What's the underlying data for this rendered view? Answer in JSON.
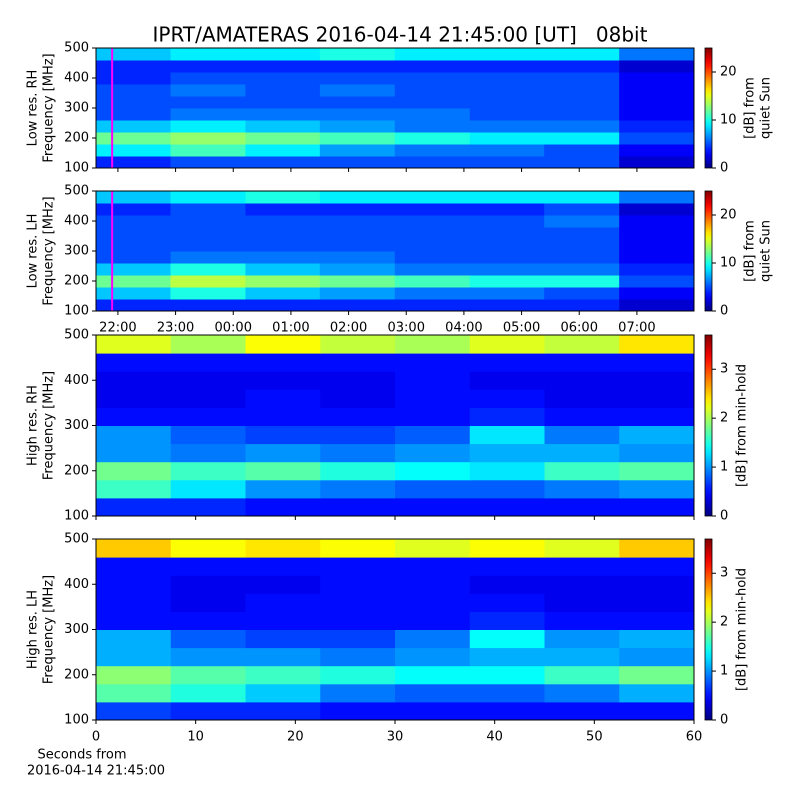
{
  "title": "IPRT/AMATERAS 2016-04-14 21:45:00 [UT]   08bit",
  "chart_data": [
    {
      "type": "heatmap",
      "ylabel": [
        "Low res. RH",
        "Frequency [MHz]"
      ],
      "colorbar_label": [
        "[dB] from",
        "quiet Sun"
      ],
      "xlim": [
        21.62,
        31.99
      ],
      "xticks": [
        {
          "value": 22,
          "label": "22:00"
        },
        {
          "value": 23,
          "label": "23:00"
        },
        {
          "value": 24,
          "label": "00:00"
        },
        {
          "value": 25,
          "label": "01:00"
        },
        {
          "value": 26,
          "label": "02:00"
        },
        {
          "value": 27,
          "label": "03:00"
        },
        {
          "value": 28,
          "label": "04:00"
        },
        {
          "value": 29,
          "label": "05:00"
        },
        {
          "value": 30,
          "label": "06:00"
        },
        {
          "value": 31,
          "label": "07:00"
        }
      ],
      "xtick_labels": false,
      "ylim": [
        100,
        500
      ],
      "yticks": [
        100,
        200,
        300,
        400,
        500
      ],
      "zlim": [
        0,
        25
      ],
      "zticks": [
        0,
        10,
        20
      ],
      "cursor_x": 21.9,
      "cursor_color": "#ff00ff",
      "x": [
        22.27,
        23.56,
        24.86,
        26.15,
        27.45,
        28.75,
        30.04,
        31.34
      ],
      "y": [
        120,
        160,
        200,
        240,
        280,
        320,
        360,
        400,
        440,
        480
      ],
      "z": [
        [
          4,
          5,
          5,
          5,
          5,
          5,
          5,
          2
        ],
        [
          9,
          11,
          9,
          7,
          6,
          6,
          5,
          3
        ],
        [
          12,
          13,
          12,
          11,
          10,
          9,
          9,
          5
        ],
        [
          8,
          9,
          8,
          7,
          6,
          6,
          6,
          4
        ],
        [
          5,
          6,
          6,
          6,
          6,
          5,
          5,
          3
        ],
        [
          5,
          5,
          5,
          5,
          5,
          5,
          5,
          3
        ],
        [
          5,
          6,
          5,
          6,
          5,
          5,
          5,
          3
        ],
        [
          4,
          5,
          5,
          5,
          5,
          5,
          5,
          3
        ],
        [
          4,
          4,
          4,
          4,
          4,
          4,
          4,
          2
        ],
        [
          8,
          9,
          9,
          10,
          9,
          9,
          9,
          6
        ]
      ]
    },
    {
      "type": "heatmap",
      "ylabel": [
        "Low res. LH",
        "Frequency [MHz]"
      ],
      "colorbar_label": [
        "[dB] from",
        "quiet Sun"
      ],
      "xlim": [
        21.62,
        31.99
      ],
      "xticks": [
        {
          "value": 22,
          "label": "22:00"
        },
        {
          "value": 23,
          "label": "23:00"
        },
        {
          "value": 24,
          "label": "00:00"
        },
        {
          "value": 25,
          "label": "01:00"
        },
        {
          "value": 26,
          "label": "02:00"
        },
        {
          "value": 27,
          "label": "03:00"
        },
        {
          "value": 28,
          "label": "04:00"
        },
        {
          "value": 29,
          "label": "05:00"
        },
        {
          "value": 30,
          "label": "06:00"
        },
        {
          "value": 31,
          "label": "07:00"
        }
      ],
      "xtick_labels": true,
      "ylim": [
        100,
        500
      ],
      "yticks": [
        100,
        200,
        300,
        400,
        500
      ],
      "zlim": [
        0,
        25
      ],
      "zticks": [
        0,
        10,
        20
      ],
      "cursor_x": 21.9,
      "cursor_color": "#ff00ff",
      "x": [
        22.27,
        23.56,
        24.86,
        26.15,
        27.45,
        28.75,
        30.04,
        31.34
      ],
      "y": [
        120,
        160,
        200,
        240,
        280,
        320,
        360,
        400,
        440,
        480
      ],
      "z": [
        [
          4,
          4,
          4,
          4,
          4,
          4,
          4,
          2
        ],
        [
          8,
          10,
          8,
          7,
          6,
          6,
          5,
          3
        ],
        [
          12,
          14,
          13,
          12,
          11,
          10,
          10,
          5
        ],
        [
          8,
          10,
          8,
          7,
          6,
          6,
          6,
          4
        ],
        [
          5,
          6,
          6,
          6,
          5,
          5,
          5,
          3
        ],
        [
          5,
          5,
          5,
          5,
          5,
          5,
          5,
          3
        ],
        [
          5,
          5,
          5,
          5,
          5,
          5,
          5,
          3
        ],
        [
          5,
          5,
          5,
          5,
          5,
          5,
          6,
          3
        ],
        [
          4,
          5,
          4,
          4,
          4,
          4,
          5,
          2
        ],
        [
          8,
          9,
          10,
          9,
          9,
          9,
          9,
          6
        ]
      ]
    },
    {
      "type": "heatmap",
      "ylabel": [
        "High res. RH",
        "Frequency [MHz]"
      ],
      "colorbar_label": [
        "[dB] from min-hold"
      ],
      "xlim": [
        0,
        60
      ],
      "xticks": [
        0,
        10,
        20,
        30,
        40,
        50,
        60
      ],
      "xtick_labels": false,
      "ylim": [
        100,
        500
      ],
      "yticks": [
        100,
        200,
        300,
        400,
        500
      ],
      "zlim": [
        0,
        3.7
      ],
      "zticks": [
        0,
        1,
        2,
        3
      ],
      "x": [
        3.75,
        11.25,
        18.75,
        26.25,
        33.75,
        41.25,
        48.75,
        56.25
      ],
      "y": [
        120,
        160,
        200,
        240,
        280,
        320,
        360,
        400,
        440,
        480
      ],
      "z": [
        [
          0.6,
          0.6,
          0.5,
          0.5,
          0.5,
          0.5,
          0.5,
          0.5
        ],
        [
          1.6,
          1.3,
          1.0,
          0.9,
          0.8,
          0.8,
          0.9,
          1.0
        ],
        [
          1.8,
          1.6,
          1.7,
          1.5,
          1.4,
          1.3,
          1.6,
          1.7
        ],
        [
          1.0,
          0.9,
          1.0,
          0.9,
          1.0,
          1.1,
          1.1,
          1.0
        ],
        [
          1.0,
          0.8,
          0.7,
          0.7,
          0.8,
          1.3,
          0.9,
          1.1
        ],
        [
          0.5,
          0.5,
          0.5,
          0.5,
          0.5,
          0.6,
          0.5,
          0.5
        ],
        [
          0.4,
          0.4,
          0.5,
          0.4,
          0.5,
          0.5,
          0.4,
          0.4
        ],
        [
          0.4,
          0.4,
          0.4,
          0.4,
          0.5,
          0.4,
          0.4,
          0.4
        ],
        [
          0.5,
          0.5,
          0.5,
          0.5,
          0.5,
          0.5,
          0.5,
          0.5
        ],
        [
          2.2,
          2.0,
          2.3,
          2.1,
          2.0,
          2.2,
          2.1,
          2.4
        ]
      ]
    },
    {
      "type": "heatmap",
      "ylabel": [
        "High res. LH",
        "Frequency [MHz]"
      ],
      "colorbar_label": [
        "[dB] from min-hold"
      ],
      "xlim": [
        0,
        60
      ],
      "xticks": [
        0,
        10,
        20,
        30,
        40,
        50,
        60
      ],
      "xtick_labels": true,
      "xlabel": [
        "Seconds from",
        "2016-04-14 21:45:00"
      ],
      "ylim": [
        100,
        500
      ],
      "yticks": [
        100,
        200,
        300,
        400,
        500
      ],
      "zlim": [
        0,
        3.7
      ],
      "zticks": [
        0,
        1,
        2,
        3
      ],
      "x": [
        3.75,
        11.25,
        18.75,
        26.25,
        33.75,
        41.25,
        48.75,
        56.25
      ],
      "y": [
        120,
        160,
        200,
        240,
        280,
        320,
        360,
        400,
        440,
        480
      ],
      "z": [
        [
          0.7,
          0.6,
          0.6,
          0.5,
          0.5,
          0.5,
          0.5,
          0.5
        ],
        [
          1.7,
          1.5,
          1.2,
          0.9,
          0.8,
          0.8,
          0.9,
          1.1
        ],
        [
          1.9,
          1.7,
          1.6,
          1.5,
          1.4,
          1.4,
          1.6,
          1.8
        ],
        [
          1.1,
          1.0,
          1.0,
          0.9,
          1.0,
          1.1,
          1.1,
          1.0
        ],
        [
          1.1,
          0.8,
          0.7,
          0.7,
          0.9,
          1.4,
          1.0,
          1.1
        ],
        [
          0.5,
          0.5,
          0.5,
          0.5,
          0.5,
          0.6,
          0.5,
          0.5
        ],
        [
          0.5,
          0.4,
          0.5,
          0.5,
          0.5,
          0.5,
          0.4,
          0.4
        ],
        [
          0.5,
          0.4,
          0.4,
          0.5,
          0.5,
          0.4,
          0.4,
          0.4
        ],
        [
          0.5,
          0.5,
          0.5,
          0.5,
          0.5,
          0.5,
          0.5,
          0.5
        ],
        [
          2.5,
          2.3,
          2.4,
          2.3,
          2.2,
          2.3,
          2.2,
          2.5
        ]
      ]
    }
  ]
}
